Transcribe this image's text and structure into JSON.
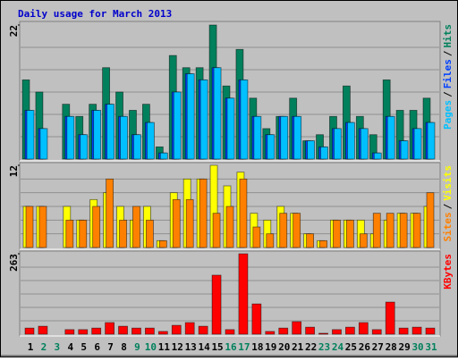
{
  "chart_data": [
    {
      "type": "bar",
      "title": "Daily usage for March 2013",
      "ylim": [
        0,
        22
      ],
      "yticks": [
        22
      ],
      "legend_separator": "/",
      "series": [
        {
          "name": "Hits",
          "color": "#00805c",
          "values": [
            13,
            11,
            0,
            9,
            7,
            9,
            15,
            11,
            8,
            9,
            2,
            17,
            15,
            15,
            22,
            12,
            18,
            10,
            5,
            7,
            10,
            3,
            4,
            7,
            12,
            7,
            4,
            13,
            8,
            8,
            10
          ]
        },
        {
          "name": "Files",
          "color": "#0040ff",
          "values": [
            8,
            5,
            0,
            7,
            4,
            8,
            9,
            7,
            4,
            6,
            1,
            11,
            14,
            13,
            15,
            10,
            13,
            7,
            4,
            7,
            7,
            3,
            2,
            5,
            6,
            5,
            1,
            7,
            3,
            5,
            6
          ]
        },
        {
          "name": "Pages",
          "color": "#00c0ff",
          "values": [
            8,
            5,
            0,
            7,
            4,
            8,
            9,
            7,
            4,
            6,
            1,
            11,
            14,
            13,
            15,
            10,
            13,
            7,
            4,
            7,
            7,
            3,
            2,
            5,
            6,
            5,
            1,
            7,
            3,
            5,
            6
          ]
        }
      ]
    },
    {
      "type": "bar",
      "ylim": [
        0,
        12
      ],
      "yticks": [
        12
      ],
      "legend_separator": "/",
      "series": [
        {
          "name": "Visits",
          "color": "#ffff00",
          "values": [
            6,
            6,
            0,
            6,
            4,
            7,
            8,
            6,
            4,
            6,
            1,
            8,
            10,
            10,
            12,
            9,
            11,
            5,
            4,
            6,
            5,
            2,
            1,
            4,
            4,
            4,
            2,
            4,
            5,
            5,
            6
          ]
        },
        {
          "name": "Sites",
          "color": "#ff8000",
          "values": [
            6,
            6,
            0,
            4,
            4,
            6,
            10,
            4,
            6,
            4,
            1,
            7,
            7,
            10,
            5,
            6,
            10,
            3,
            2,
            5,
            5,
            2,
            1,
            4,
            4,
            2,
            5,
            5,
            5,
            5,
            8
          ]
        }
      ]
    },
    {
      "type": "bar",
      "ylim": [
        0,
        263
      ],
      "yticks": [
        263
      ],
      "categories": [
        "1",
        "2",
        "3",
        "4",
        "5",
        "6",
        "7",
        "8",
        "9",
        "10",
        "11",
        "12",
        "13",
        "14",
        "15",
        "16",
        "17",
        "18",
        "19",
        "20",
        "21",
        "22",
        "23",
        "24",
        "25",
        "26",
        "27",
        "28",
        "29",
        "30",
        "31"
      ],
      "category_colors": [
        "#000000",
        "#00805c",
        "#00805c",
        "#000000",
        "#000000",
        "#000000",
        "#000000",
        "#000000",
        "#00805c",
        "#00805c",
        "#000000",
        "#000000",
        "#000000",
        "#000000",
        "#000000",
        "#00805c",
        "#00805c",
        "#000000",
        "#000000",
        "#000000",
        "#000000",
        "#000000",
        "#00805c",
        "#00805c",
        "#000000",
        "#000000",
        "#000000",
        "#000000",
        "#000000",
        "#00805c",
        "#00805c"
      ],
      "series": [
        {
          "name": "KBytes",
          "color": "#ff0000",
          "values": [
            20,
            26,
            0,
            15,
            15,
            20,
            38,
            26,
            20,
            20,
            9,
            29,
            38,
            26,
            193,
            15,
            263,
            99,
            9,
            20,
            41,
            23,
            3,
            15,
            23,
            38,
            15,
            105,
            20,
            23,
            20
          ]
        }
      ]
    }
  ]
}
